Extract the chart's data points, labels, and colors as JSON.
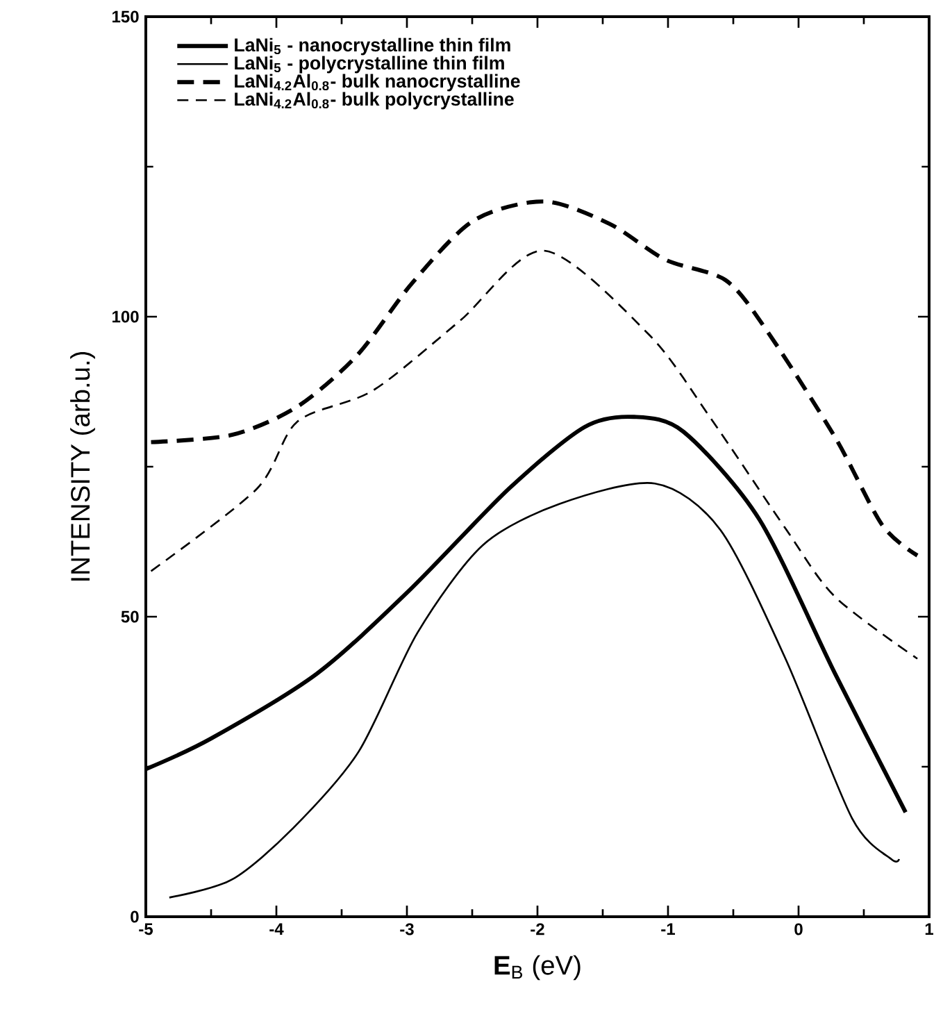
{
  "chart_data": {
    "type": "line",
    "xlabel": "**E**$_{B}$ (eV)",
    "ylabel": "INTENSITY  (arb.u.)",
    "xlim": [
      -5,
      1
    ],
    "ylim": [
      0,
      150
    ],
    "xticks": [
      -5,
      -4,
      -3,
      -2,
      -1,
      0,
      1
    ],
    "yticks": [
      0,
      50,
      100,
      150
    ],
    "legend": "top left",
    "grid": false,
    "series": [
      {
        "name": "LaNi$_{5}$ - nanocrystalline thin film",
        "color": "#000000",
        "line_style": "solid",
        "x": [
          -5,
          -4.5,
          -3.69,
          -2.99,
          -2.22,
          -1.64,
          -1.26,
          -0.88,
          -0.3,
          0.28,
          0.82
        ],
        "values": [
          24.6,
          29.7,
          40.5,
          54.2,
          71.3,
          81.6,
          83.3,
          80.8,
          66.2,
          40.5,
          17.4
        ]
      },
      {
        "name": "LaNi$_{5}$ - polycrystalline thin film",
        "color": "#000000",
        "line_style": "solid",
        "x": [
          -4.82,
          -4.34,
          -3.87,
          -3.37,
          -2.92,
          -2.42,
          -1.83,
          -1.1,
          -0.6,
          -0.1,
          0.41,
          0.71,
          0.77
        ],
        "values": [
          3.2,
          6.2,
          14.8,
          27.5,
          47.3,
          61.9,
          68.8,
          72.2,
          64.5,
          43,
          16.4,
          9.6,
          9.6
        ]
      },
      {
        "name": "LaNi$_{4.2}$Al$_{0.8}$- bulk nanocrystalline",
        "color": "#000000",
        "line_style": "dashed",
        "x": [
          -4.96,
          -4.34,
          -3.84,
          -3.38,
          -2.96,
          -2.49,
          -1.95,
          -1.45,
          -1.02,
          -0.56,
          -0.25,
          0.28,
          0.64,
          0.91
        ],
        "values": [
          79.1,
          80.3,
          85,
          93.6,
          105.6,
          116,
          119.2,
          115.5,
          109.5,
          106.1,
          97.9,
          79.9,
          65.3,
          60.2
        ]
      },
      {
        "name": "LaNi$_{4.2}$Al$_{0.8}$- bulk polycrystalline",
        "color": "#000000",
        "line_style": "dashed",
        "x": [
          -4.96,
          -4.15,
          -3.84,
          -3.26,
          -2.6,
          -1.95,
          -1.15,
          -0.68,
          -0.1,
          0.28,
          0.91
        ],
        "values": [
          57.6,
          71.3,
          82.5,
          87.7,
          99.2,
          111,
          97.1,
          83.3,
          64.7,
          53.3,
          43
        ]
      }
    ]
  }
}
